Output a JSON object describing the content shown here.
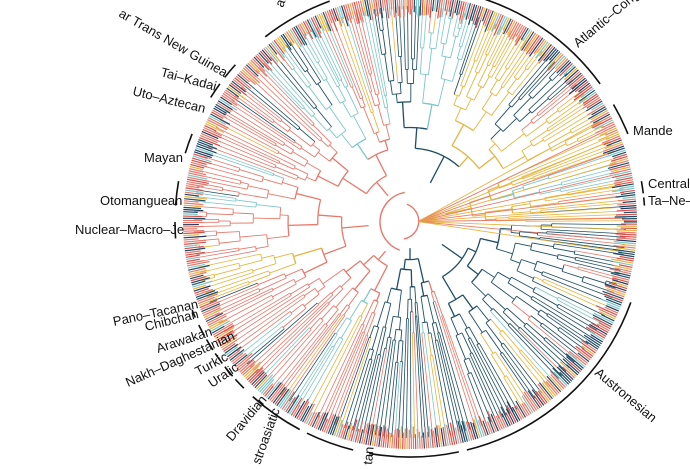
{
  "families": [
    {
      "name": "Trans New Guinea",
      "shown": "ar Trans New Guinea"
    },
    {
      "name": "Tai-Kadai",
      "shown": "Tai–Kadai"
    },
    {
      "name": "Uto-Aztecan",
      "shown": "Uto–Aztecan"
    },
    {
      "name": "Mayan",
      "shown": "Mayan"
    },
    {
      "name": "Otomanguean",
      "shown": "Otomanguean"
    },
    {
      "name": "Nuclear-Macro-Je",
      "shown": "Nuclear–Macro–Je"
    },
    {
      "name": "Pano-Tacanan",
      "shown": "Pano–Tacanan"
    },
    {
      "name": "Chibchan",
      "shown": "Chibchan"
    },
    {
      "name": "Arawakan",
      "shown": "Arawakan"
    },
    {
      "name": "Nakh-Daghestanian",
      "shown": "Nakh–Daghestanian"
    },
    {
      "name": "Turkic",
      "shown": "Turkic"
    },
    {
      "name": "Uralic",
      "shown": "Uralic"
    },
    {
      "name": "Dravidian",
      "shown": "Dravidian"
    },
    {
      "name": "Austroasiatic",
      "shown": "stroasiatic"
    },
    {
      "name": "Sino-Tibetan",
      "shown": "tan"
    },
    {
      "name": "Austronesian",
      "shown": "Austronesian"
    },
    {
      "name": "Ta-Ne-Omotic",
      "shown": "Ta–Ne–("
    },
    {
      "name": "Central Sudanic",
      "shown": "Central S"
    },
    {
      "name": "Mande",
      "shown": "Mande"
    },
    {
      "name": "Atlantic-Congo",
      "shown": "Atlantic–Congo"
    },
    {
      "name": "Austronesian-top",
      "shown": "an"
    }
  ],
  "colors": {
    "dark": "#1f4e66",
    "salmon": "#e8796b",
    "gold": "#e7b43f",
    "red": "#d94f4a",
    "teal": "#7ec6c9",
    "navy": "#233b5a",
    "label": "#111111"
  }
}
